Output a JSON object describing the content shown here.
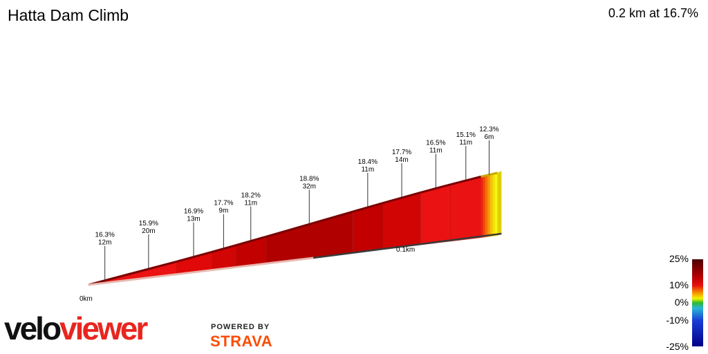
{
  "title": "Hatta Dam Climb",
  "summary": "0.2 km at 16.7%",
  "brand": {
    "logo_part1": "velo",
    "logo_part2": "viewer",
    "powered_by": "POWERED BY",
    "strava": "STRAVA"
  },
  "chart_data": {
    "type": "area",
    "x_ticks": [
      "0km",
      "0.1km"
    ],
    "segments": [
      {
        "grade": "16.3%",
        "length": "12m"
      },
      {
        "grade": "15.9%",
        "length": "20m"
      },
      {
        "grade": "16.9%",
        "length": "13m"
      },
      {
        "grade": "17.7%",
        "length": "9m"
      },
      {
        "grade": "18.2%",
        "length": "11m"
      },
      {
        "grade": "18.8%",
        "length": "32m"
      },
      {
        "grade": "18.4%",
        "length": "11m"
      },
      {
        "grade": "17.7%",
        "length": "14m"
      },
      {
        "grade": "16.5%",
        "length": "11m"
      },
      {
        "grade": "15.1%",
        "length": "11m"
      },
      {
        "grade": "12.3%",
        "length": "6m"
      }
    ],
    "legend": {
      "ticks": [
        "25%",
        "10%",
        "0%",
        "-10%",
        "-25%"
      ],
      "colors": {
        "top": "#4a0000",
        "dark_red": "#b50000",
        "red": "#e81010",
        "orange": "#f58a00",
        "yellow": "#f4f400",
        "green": "#2eb82e",
        "cyan": "#29b6d6",
        "blue": "#1a3fd6",
        "navy": "#000088"
      }
    }
  }
}
